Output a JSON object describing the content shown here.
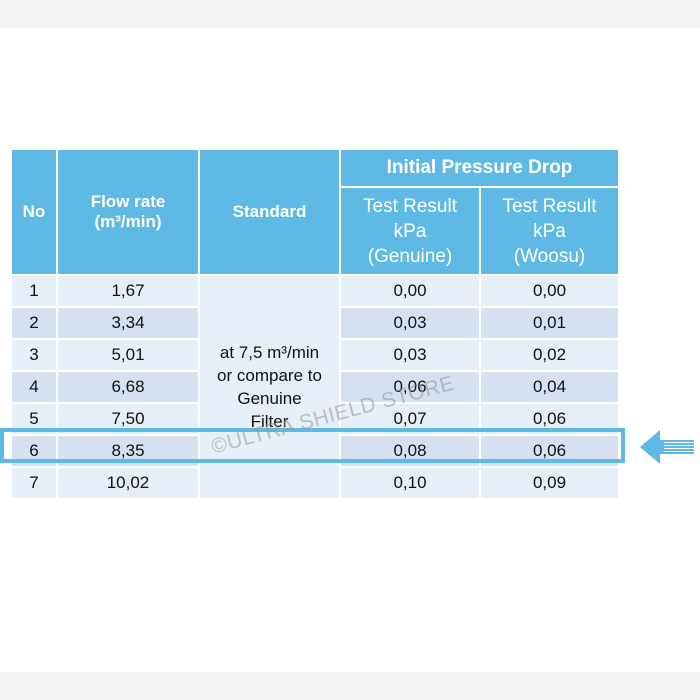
{
  "table": {
    "headers": {
      "no": "No",
      "flow_rate": [
        "Flow rate",
        "(m³/min)"
      ],
      "standard": "Standard",
      "group": "Initial Pressure Drop",
      "genuine": [
        "Test Result",
        "kPa",
        "(Genuine)"
      ],
      "woosu": [
        "Test Result",
        "kPa",
        "(Woosu)"
      ]
    },
    "standard_text": [
      "at 7,5 m³/min",
      "or compare to",
      "Genuine",
      "Filter"
    ],
    "rows": [
      {
        "no": "1",
        "flow": "1,67",
        "genuine": "0,00",
        "woosu": "0,00"
      },
      {
        "no": "2",
        "flow": "3,34",
        "genuine": "0,03",
        "woosu": "0,01"
      },
      {
        "no": "3",
        "flow": "5,01",
        "genuine": "0,03",
        "woosu": "0,02"
      },
      {
        "no": "4",
        "flow": "6,68",
        "genuine": "0,06",
        "woosu": "0,04"
      },
      {
        "no": "5",
        "flow": "7,50",
        "genuine": "0,07",
        "woosu": "0,06"
      },
      {
        "no": "6",
        "flow": "8,35",
        "genuine": "0,08",
        "woosu": "0,06"
      },
      {
        "no": "7",
        "flow": "10,02",
        "genuine": "0,10",
        "woosu": "0,09"
      }
    ],
    "highlighted_row": "5"
  },
  "watermark": "©ULTRA SHIELD STORE",
  "colors": {
    "header": "#5eb9e4",
    "row_light": "#e6eef7",
    "row_dark": "#d5e1f0",
    "highlight": "#5eb9e4"
  },
  "icons": {
    "pointer": "left-arrow-icon"
  }
}
